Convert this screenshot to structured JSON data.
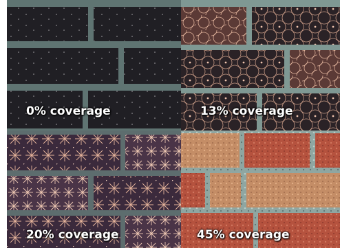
{
  "panels": [
    {
      "label": "0% coverage"
    },
    {
      "label": "13% coverage"
    },
    {
      "label": "20% coverage"
    },
    {
      "label": "45% coverage"
    }
  ],
  "colors": {
    "mortar_dark": "#5f7472",
    "mortar_light": "#8fa6a1",
    "brick_dark": "#1f1d22",
    "brick_purple": "#3b2a3c",
    "brick_red": "#b5523e",
    "brick_tan": "#c48d66",
    "lichen": "#e9b896"
  },
  "icons": [
    "brick-wall-texture",
    "lichen-pattern"
  ]
}
